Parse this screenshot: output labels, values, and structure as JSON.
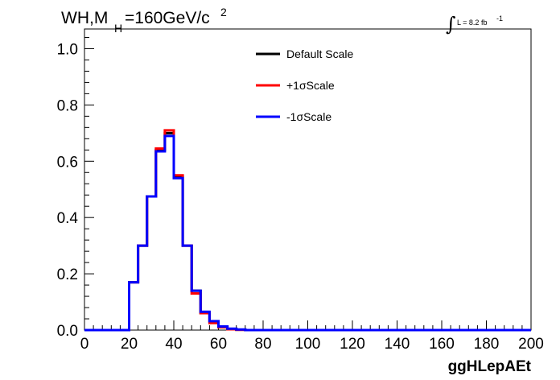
{
  "chart_data": {
    "type": "line",
    "style": "step-histogram",
    "title": {
      "main": "WH,M",
      "sub": "H",
      "rest": "=160GeV/c",
      "sup": "2"
    },
    "luminosity": {
      "integral": "∫",
      "text": "L = 8.2 fb",
      "sup": "-1"
    },
    "xlabel": "ggHLepAEt",
    "ylabel": "",
    "xlim": [
      0,
      200
    ],
    "ylim": [
      0,
      1.07
    ],
    "bin_width": 4,
    "bin_edges_start": 0,
    "x_ticks": [
      "0",
      "20",
      "40",
      "60",
      "80",
      "100",
      "120",
      "140",
      "160",
      "180",
      "200"
    ],
    "x_tick_values": [
      0,
      20,
      40,
      60,
      80,
      100,
      120,
      140,
      160,
      180,
      200
    ],
    "y_ticks": [
      "0.0",
      "0.2",
      "0.4",
      "0.6",
      "0.8",
      "1.0"
    ],
    "y_tick_values": [
      0,
      0.2,
      0.4,
      0.6,
      0.8,
      1.0
    ],
    "grid": false,
    "legend_position": "top-center",
    "series": [
      {
        "name": "Default Scale",
        "color": "#000000",
        "values": [
          0,
          0,
          0,
          0,
          0,
          0.17,
          0.3,
          0.475,
          0.64,
          0.7,
          0.545,
          0.3,
          0.14,
          0.06,
          0.03,
          0.012,
          0.004,
          0.001,
          0,
          0
        ]
      },
      {
        "name": "+1σScale",
        "color": "#ff0000",
        "values": [
          0,
          0,
          0,
          0,
          0,
          0.17,
          0.3,
          0.475,
          0.645,
          0.71,
          0.55,
          0.3,
          0.13,
          0.06,
          0.025,
          0.01,
          0.003,
          0.001,
          0,
          0
        ]
      },
      {
        "name": "-1σScale",
        "color": "#0000ff",
        "values": [
          0,
          0,
          0,
          0,
          0,
          0.17,
          0.3,
          0.475,
          0.635,
          0.69,
          0.54,
          0.3,
          0.14,
          0.065,
          0.032,
          0.013,
          0.005,
          0.002,
          0,
          0
        ]
      }
    ]
  }
}
